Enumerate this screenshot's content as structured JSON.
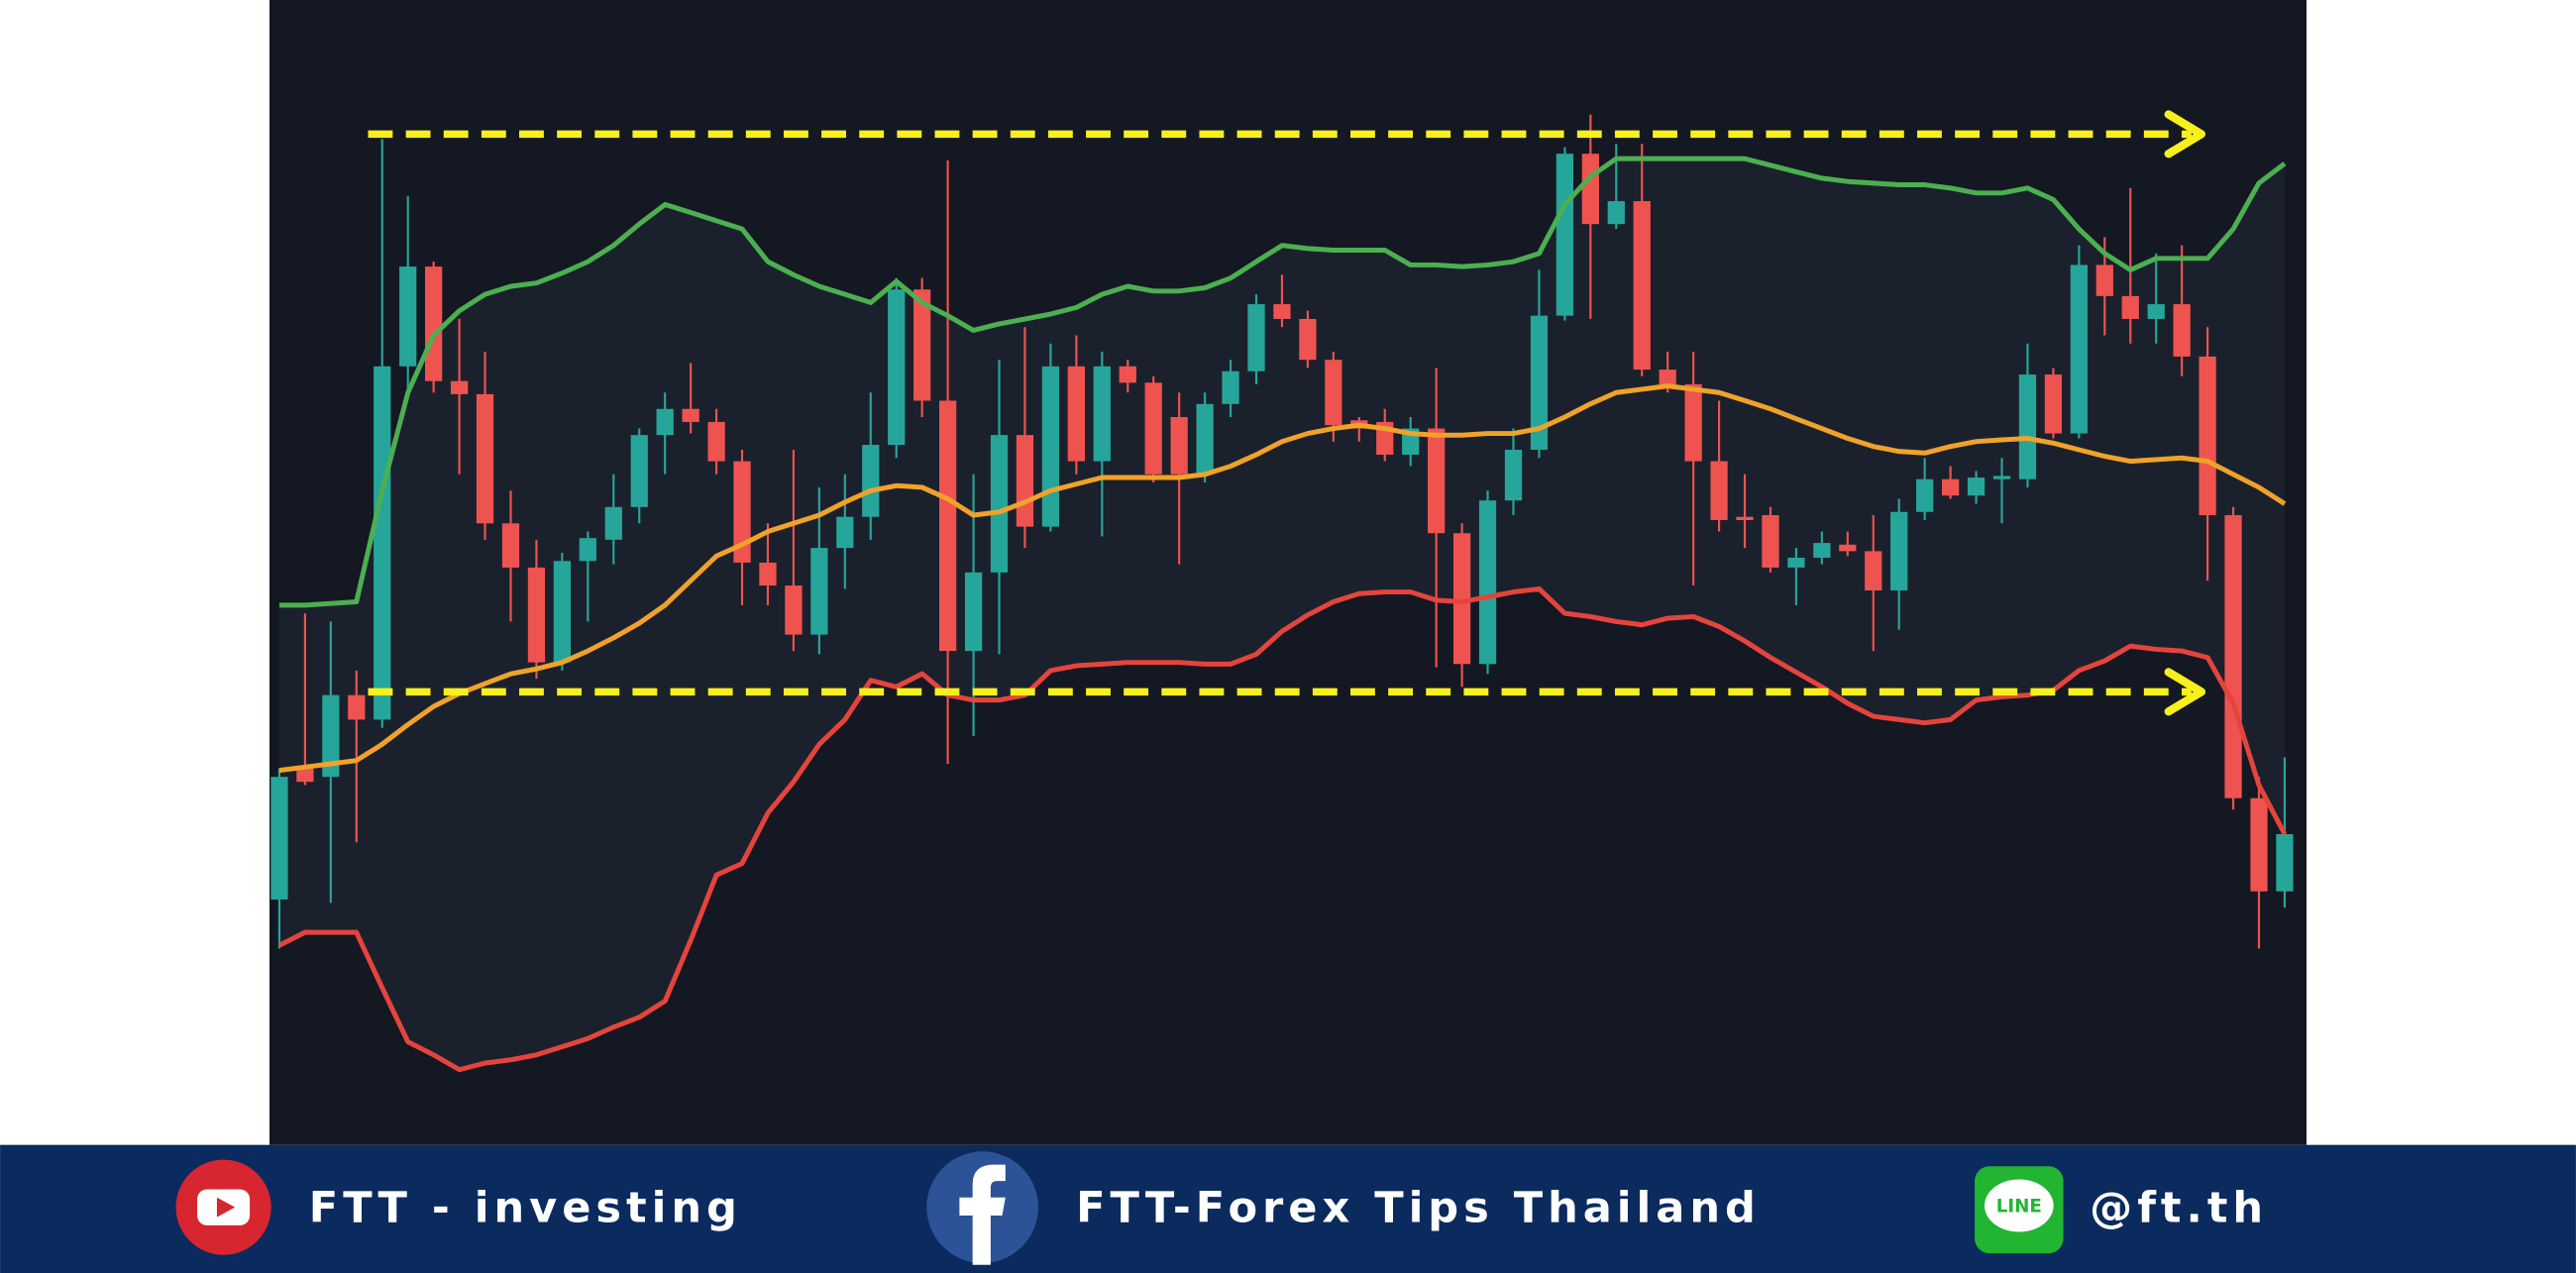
{
  "chart_data": {
    "type": "candlestick",
    "ylim": [
      0,
      700
    ],
    "up_color": "#26a69a",
    "down_color": "#ef5350",
    "open": [
      150,
      230,
      225,
      275,
      260,
      476,
      537,
      467,
      459,
      380,
      353,
      295,
      357,
      370,
      390,
      434,
      450,
      442,
      418,
      356,
      342,
      312,
      365,
      384,
      428,
      523,
      455,
      302,
      350,
      434,
      378,
      476,
      418,
      476,
      466,
      445,
      410,
      453,
      473,
      514,
      505,
      480,
      443,
      442,
      422,
      438,
      374,
      294,
      394,
      425,
      507,
      606,
      563,
      577,
      474,
      465,
      418,
      384,
      385,
      353,
      359,
      367,
      363,
      339,
      387,
      407,
      397,
      407,
      407,
      471,
      435,
      538,
      519,
      505,
      514,
      482,
      385,
      212,
      155
    ],
    "close": [
      225,
      222,
      275,
      260,
      476,
      537,
      467,
      459,
      380,
      353,
      295,
      357,
      371,
      390,
      434,
      450,
      442,
      418,
      356,
      342,
      312,
      365,
      384,
      428,
      523,
      455,
      302,
      350,
      434,
      378,
      476,
      418,
      476,
      466,
      410,
      410,
      453,
      473,
      514,
      505,
      480,
      440,
      438,
      422,
      438,
      374,
      294,
      394,
      425,
      507,
      606,
      563,
      577,
      474,
      465,
      418,
      382,
      382,
      353,
      359,
      368,
      363,
      339,
      387,
      407,
      397,
      408,
      409,
      471,
      435,
      538,
      519,
      505,
      514,
      482,
      385,
      212,
      155,
      190
    ],
    "high": [
      230,
      325,
      320,
      290,
      615,
      580,
      540,
      505,
      485,
      400,
      370,
      362,
      375,
      410,
      438,
      460,
      478,
      450,
      425,
      380,
      425,
      402,
      410,
      460,
      530,
      530,
      602,
      410,
      480,
      500,
      490,
      495,
      485,
      480,
      470,
      460,
      460,
      480,
      520,
      532,
      510,
      485,
      445,
      450,
      445,
      475,
      380,
      400,
      438,
      535,
      610,
      630,
      612,
      612,
      485,
      485,
      455,
      410,
      390,
      365,
      375,
      375,
      385,
      395,
      420,
      415,
      412,
      420,
      490,
      475,
      550,
      555,
      585,
      545,
      550,
      500,
      390,
      225,
      237
    ],
    "low": [
      120,
      220,
      148,
      185,
      255,
      460,
      460,
      410,
      370,
      320,
      285,
      290,
      320,
      355,
      380,
      410,
      435,
      410,
      330,
      330,
      302,
      300,
      340,
      370,
      420,
      445,
      233,
      250,
      300,
      365,
      375,
      410,
      372,
      460,
      405,
      355,
      405,
      445,
      465,
      500,
      475,
      430,
      430,
      418,
      415,
      292,
      280,
      288,
      385,
      420,
      504,
      505,
      560,
      470,
      460,
      342,
      375,
      365,
      350,
      330,
      355,
      360,
      302,
      315,
      382,
      395,
      392,
      380,
      402,
      432,
      432,
      495,
      490,
      490,
      470,
      345,
      205,
      120,
      145
    ],
    "bands": {
      "upper": {
        "color": "#4caf50",
        "values": [
          330,
          330,
          331,
          332,
          400,
          460,
          495,
          510,
          520,
          525,
          527,
          533,
          540,
          550,
          563,
          575,
          570,
          565,
          560,
          540,
          532,
          525,
          520,
          515,
          528,
          515,
          507,
          498,
          502,
          505,
          508,
          512,
          520,
          525,
          522,
          522,
          524,
          530,
          540,
          550,
          548,
          547,
          547,
          547,
          538,
          538,
          537,
          538,
          540,
          545,
          575,
          592,
          603,
          603,
          603,
          603,
          603,
          603,
          599,
          595,
          591,
          589,
          588,
          587,
          587,
          585,
          582,
          582,
          585,
          578,
          560,
          545,
          535,
          542,
          542,
          542,
          560,
          588,
          600
        ]
      },
      "middle": {
        "color": "#f0a22a",
        "values": [
          229,
          231,
          233,
          235,
          245,
          257,
          268,
          276,
          282,
          288,
          291,
          295,
          302,
          310,
          319,
          330,
          345,
          360,
          367,
          375,
          380,
          385,
          393,
          400,
          403,
          402,
          395,
          385,
          387,
          393,
          400,
          404,
          408,
          408,
          408,
          408,
          410,
          415,
          422,
          430,
          435,
          438,
          440,
          438,
          435,
          434,
          434,
          435,
          435,
          438,
          445,
          453,
          460,
          462,
          464,
          462,
          460,
          455,
          450,
          444,
          438,
          432,
          427,
          424,
          423,
          427,
          430,
          431,
          432,
          429,
          425,
          421,
          418,
          419,
          420,
          418,
          410,
          402,
          392
        ]
      },
      "lower": {
        "color": "#e5443c",
        "values": [
          122,
          130,
          130,
          130,
          96,
          63,
          55,
          46,
          50,
          52,
          55,
          60,
          65,
          72,
          78,
          88,
          125,
          165,
          172,
          203,
          222,
          245,
          260,
          284,
          280,
          288,
          275,
          272,
          272,
          275,
          290,
          293,
          294,
          295,
          295,
          295,
          294,
          294,
          300,
          314,
          324,
          332,
          337,
          338,
          338,
          333,
          332,
          335,
          338,
          340,
          325,
          323,
          320,
          318,
          322,
          323,
          317,
          308,
          298,
          289,
          280,
          270,
          262,
          260,
          258,
          260,
          272,
          274,
          275,
          278,
          290,
          296,
          305,
          303,
          302,
          298,
          270,
          220,
          190
        ]
      }
    },
    "levels": {
      "color": "#f7f01c",
      "values": [
        618,
        277
      ]
    }
  },
  "footer": {
    "youtube": "FTT - investing",
    "facebook": "FTT-Forex Tips Thailand",
    "line_icon": "LINE",
    "line": "@ft.th"
  }
}
